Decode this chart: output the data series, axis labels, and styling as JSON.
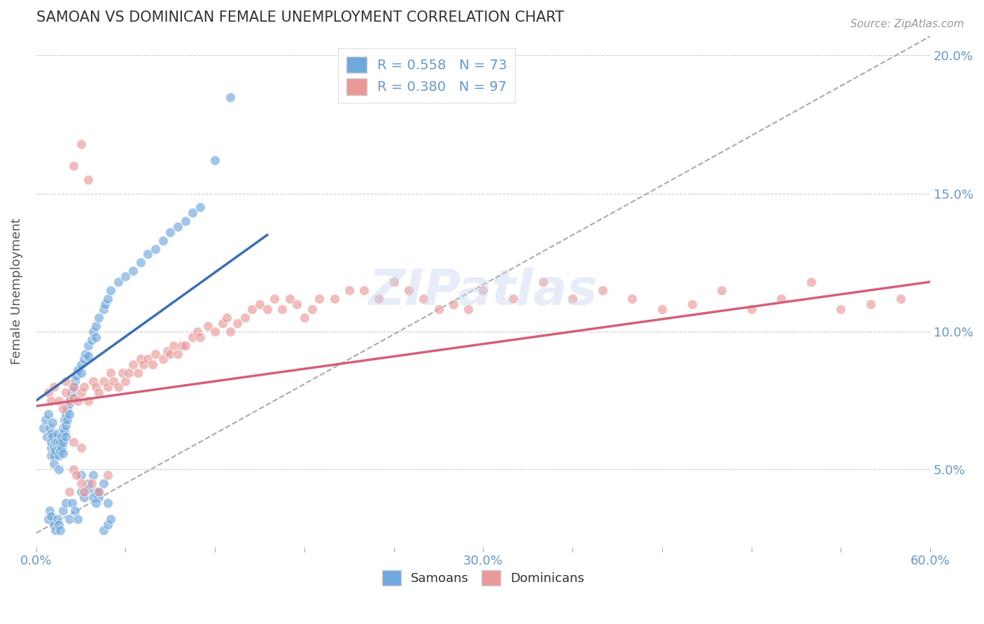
{
  "title": "SAMOAN VS DOMINICAN FEMALE UNEMPLOYMENT CORRELATION CHART",
  "source_text": "Source: ZipAtlas.com",
  "ylabel": "Female Unemployment",
  "xlim": [
    0.0,
    0.6
  ],
  "ylim": [
    0.022,
    0.207
  ],
  "yticks": [
    0.05,
    0.1,
    0.15,
    0.2
  ],
  "ytick_labels": [
    "5.0%",
    "10.0%",
    "15.0%",
    "20.0%"
  ],
  "xtick_vals": [
    0.0,
    0.06,
    0.12,
    0.18,
    0.24,
    0.3,
    0.36,
    0.42,
    0.48,
    0.54,
    0.6
  ],
  "xtick_labels": [
    "0.0%",
    "",
    "",
    "",
    "",
    "30.0%",
    "",
    "",
    "",
    "",
    "60.0%"
  ],
  "legend_r1": "R = 0.558",
  "legend_n1": "N = 73",
  "legend_r2": "R = 0.380",
  "legend_n2": "N = 97",
  "blue_color": "#6fa8dc",
  "pink_color": "#ea9999",
  "blue_line_color": "#3d6eb5",
  "pink_line_color": "#d45f7a",
  "axis_label_color": "#6699cc",
  "title_color": "#333333",
  "blue_line_x0": 0.0,
  "blue_line_y0": 0.075,
  "blue_line_x1": 0.155,
  "blue_line_y1": 0.135,
  "pink_line_x0": 0.0,
  "pink_line_y0": 0.073,
  "pink_line_x1": 0.6,
  "pink_line_y1": 0.118,
  "ref_line_x0": 0.0,
  "ref_line_y0": 0.027,
  "ref_line_x1": 0.6,
  "ref_line_y1": 0.207,
  "samoans_x": [
    0.005,
    0.006,
    0.007,
    0.008,
    0.009,
    0.01,
    0.01,
    0.01,
    0.01,
    0.011,
    0.011,
    0.012,
    0.012,
    0.012,
    0.013,
    0.013,
    0.014,
    0.014,
    0.015,
    0.015,
    0.015,
    0.016,
    0.016,
    0.017,
    0.017,
    0.018,
    0.018,
    0.018,
    0.019,
    0.019,
    0.02,
    0.02,
    0.02,
    0.021,
    0.021,
    0.022,
    0.022,
    0.023,
    0.024,
    0.025,
    0.025,
    0.026,
    0.027,
    0.028,
    0.03,
    0.03,
    0.032,
    0.033,
    0.035,
    0.035,
    0.037,
    0.038,
    0.04,
    0.04,
    0.042,
    0.045,
    0.046,
    0.048,
    0.05,
    0.055,
    0.06,
    0.065,
    0.07,
    0.075,
    0.08,
    0.085,
    0.09,
    0.095,
    0.1,
    0.105,
    0.11,
    0.12,
    0.13
  ],
  "samoans_y": [
    0.065,
    0.068,
    0.062,
    0.07,
    0.065,
    0.063,
    0.058,
    0.06,
    0.055,
    0.067,
    0.062,
    0.058,
    0.055,
    0.052,
    0.06,
    0.057,
    0.063,
    0.06,
    0.058,
    0.055,
    0.05,
    0.06,
    0.057,
    0.062,
    0.058,
    0.065,
    0.06,
    0.056,
    0.068,
    0.064,
    0.07,
    0.066,
    0.062,
    0.072,
    0.068,
    0.074,
    0.07,
    0.076,
    0.078,
    0.08,
    0.076,
    0.082,
    0.084,
    0.086,
    0.088,
    0.085,
    0.09,
    0.092,
    0.095,
    0.091,
    0.097,
    0.1,
    0.102,
    0.098,
    0.105,
    0.108,
    0.11,
    0.112,
    0.115,
    0.118,
    0.12,
    0.122,
    0.125,
    0.128,
    0.13,
    0.133,
    0.136,
    0.138,
    0.14,
    0.143,
    0.145,
    0.162,
    0.185
  ],
  "samoans_x2": [
    0.008,
    0.009,
    0.01,
    0.012,
    0.013,
    0.014,
    0.015,
    0.016,
    0.018,
    0.02,
    0.022,
    0.024,
    0.026,
    0.028,
    0.03,
    0.032,
    0.035,
    0.038,
    0.04,
    0.042,
    0.045,
    0.048,
    0.03,
    0.035,
    0.038,
    0.04,
    0.042,
    0.045,
    0.048,
    0.05
  ],
  "samoans_y2": [
    0.032,
    0.035,
    0.033,
    0.03,
    0.028,
    0.032,
    0.03,
    0.028,
    0.035,
    0.038,
    0.032,
    0.038,
    0.035,
    0.032,
    0.042,
    0.04,
    0.045,
    0.048,
    0.042,
    0.04,
    0.028,
    0.03,
    0.048,
    0.043,
    0.04,
    0.038,
    0.042,
    0.045,
    0.038,
    0.032
  ],
  "dominicans_x": [
    0.008,
    0.01,
    0.012,
    0.015,
    0.018,
    0.02,
    0.02,
    0.022,
    0.025,
    0.025,
    0.028,
    0.03,
    0.032,
    0.035,
    0.038,
    0.04,
    0.042,
    0.045,
    0.048,
    0.05,
    0.052,
    0.055,
    0.058,
    0.06,
    0.062,
    0.065,
    0.068,
    0.07,
    0.072,
    0.075,
    0.078,
    0.08,
    0.085,
    0.088,
    0.09,
    0.092,
    0.095,
    0.098,
    0.1,
    0.105,
    0.108,
    0.11,
    0.115,
    0.12,
    0.125,
    0.128,
    0.13,
    0.135,
    0.14,
    0.145,
    0.15,
    0.155,
    0.16,
    0.165,
    0.17,
    0.175,
    0.18,
    0.185,
    0.19,
    0.2,
    0.21,
    0.22,
    0.23,
    0.24,
    0.25,
    0.26,
    0.27,
    0.28,
    0.29,
    0.3,
    0.32,
    0.34,
    0.36,
    0.38,
    0.4,
    0.42,
    0.44,
    0.46,
    0.48,
    0.5,
    0.52,
    0.54,
    0.56,
    0.58,
    0.025,
    0.03,
    0.035,
    0.025,
    0.03,
    0.025,
    0.03,
    0.022,
    0.027,
    0.032,
    0.037,
    0.042,
    0.048
  ],
  "dominicans_y": [
    0.078,
    0.075,
    0.08,
    0.075,
    0.072,
    0.078,
    0.082,
    0.075,
    0.08,
    0.076,
    0.075,
    0.078,
    0.08,
    0.075,
    0.082,
    0.08,
    0.078,
    0.082,
    0.08,
    0.085,
    0.082,
    0.08,
    0.085,
    0.082,
    0.085,
    0.088,
    0.085,
    0.09,
    0.088,
    0.09,
    0.088,
    0.092,
    0.09,
    0.093,
    0.092,
    0.095,
    0.092,
    0.095,
    0.095,
    0.098,
    0.1,
    0.098,
    0.102,
    0.1,
    0.103,
    0.105,
    0.1,
    0.103,
    0.105,
    0.108,
    0.11,
    0.108,
    0.112,
    0.108,
    0.112,
    0.11,
    0.105,
    0.108,
    0.112,
    0.112,
    0.115,
    0.115,
    0.112,
    0.118,
    0.115,
    0.112,
    0.108,
    0.11,
    0.108,
    0.115,
    0.112,
    0.118,
    0.112,
    0.115,
    0.112,
    0.108,
    0.11,
    0.115,
    0.108,
    0.112,
    0.118,
    0.108,
    0.11,
    0.112,
    0.16,
    0.168,
    0.155,
    0.06,
    0.058,
    0.05,
    0.045,
    0.042,
    0.048,
    0.042,
    0.045,
    0.042,
    0.048
  ],
  "watermark": "ZIPatlas",
  "background_color": "#ffffff",
  "grid_color": "#cccccc"
}
